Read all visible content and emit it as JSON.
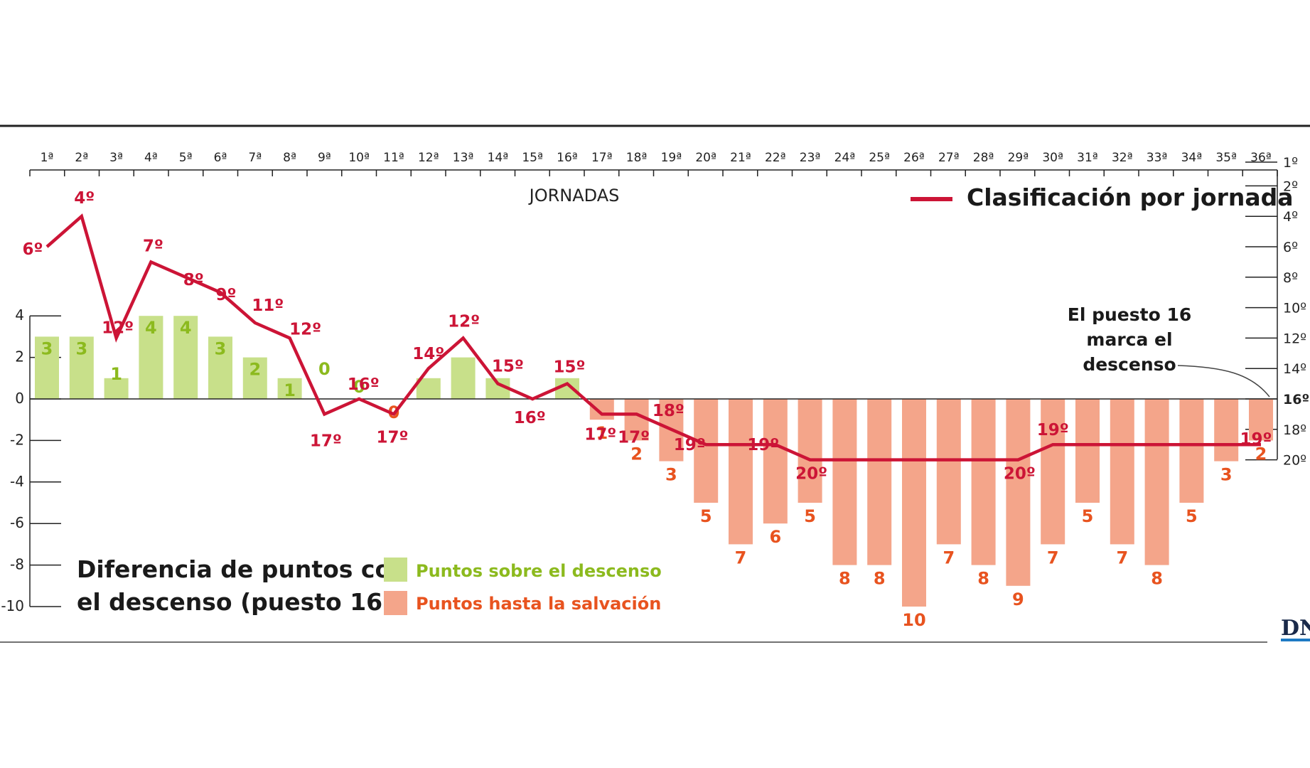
{
  "chart_data": {
    "type": "bar",
    "header_label": "JORNADAS",
    "title_lines": [
      "Diferencia de puntos con",
      "el descenso (puesto 16)"
    ],
    "jornadas": [
      "1ª",
      "2ª",
      "3ª",
      "4ª",
      "5ª",
      "6ª",
      "7ª",
      "8ª",
      "9ª",
      "10ª",
      "11ª",
      "12ª",
      "13ª",
      "14ª",
      "15ª",
      "16ª",
      "17ª",
      "18ª",
      "19ª",
      "20ª",
      "21ª",
      "22ª",
      "23ª",
      "24ª",
      "25ª",
      "26ª",
      "27ª",
      "28ª",
      "29ª",
      "30ª",
      "31ª",
      "32ª",
      "33ª",
      "34ª",
      "35ª",
      "36ª"
    ],
    "left_axis": {
      "ticks": [
        "4",
        "2",
        "0",
        "-2",
        "-4",
        "-6",
        "-8",
        "-10"
      ],
      "ylim": [
        -10,
        4
      ]
    },
    "right_axis": {
      "ticks": [
        "1º",
        "2º",
        "4º",
        "6º",
        "8º",
        "10º",
        "12º",
        "14º",
        "16º",
        "18º",
        "20º"
      ],
      "bold_tick": "16º",
      "ylim": [
        1,
        20
      ]
    },
    "series": [
      {
        "name": "Puntos sobre el descenso",
        "color": "#c8e08a",
        "label_color": "#8cba1e",
        "values": [
          3,
          3,
          1,
          4,
          4,
          3,
          2,
          1,
          0,
          0,
          null,
          1,
          2,
          1,
          null,
          1,
          null,
          null,
          null,
          null,
          null,
          null,
          null,
          null,
          null,
          null,
          null,
          null,
          null,
          null,
          null,
          null,
          null,
          null,
          null,
          null
        ],
        "labels": [
          "3",
          "3",
          "1",
          "4",
          "4",
          "3",
          "2",
          "1",
          "0",
          "0",
          "",
          "",
          "",
          "",
          "",
          "",
          "",
          "",
          "",
          "",
          "",
          "",
          "",
          "",
          "",
          "",
          "",
          "",
          "",
          "",
          "",
          "",
          "",
          "",
          "",
          ""
        ]
      },
      {
        "name": "Puntos hasta la salvación",
        "color": "#f4a58a",
        "label_color": "#e8531f",
        "values": [
          null,
          null,
          null,
          null,
          null,
          null,
          null,
          null,
          null,
          null,
          0,
          null,
          null,
          null,
          null,
          null,
          1,
          2,
          3,
          5,
          7,
          6,
          5,
          8,
          8,
          10,
          7,
          8,
          9,
          7,
          5,
          7,
          8,
          5,
          3,
          2
        ],
        "labels": [
          "",
          "",
          "",
          "",
          "",
          "",
          "",
          "",
          "",
          "",
          "0",
          "",
          "",
          "",
          "",
          "",
          "1",
          "2",
          "3",
          "5",
          "7",
          "6",
          "5",
          "8",
          "8",
          "10",
          "7",
          "8",
          "9",
          "7",
          "5",
          "7",
          "8",
          "5",
          "3",
          "2"
        ]
      },
      {
        "name": "Clasificación por jornada",
        "color": "#cc1436",
        "values": [
          6,
          4,
          12,
          7,
          8,
          9,
          11,
          12,
          17,
          16,
          17,
          14,
          12,
          15,
          16,
          15,
          17,
          17,
          18,
          19,
          19,
          19,
          20,
          20,
          20,
          20,
          20,
          20,
          20,
          19,
          19,
          19,
          19,
          19,
          19,
          19
        ],
        "labels": [
          "6º",
          "4º",
          "12º",
          "7º",
          "8º",
          "9º",
          "11º",
          "12º",
          "17º",
          "16º",
          "17º",
          "14º",
          "12º",
          "15º",
          "16º",
          "15º",
          "17º",
          "17º",
          "18º",
          "19º",
          "",
          "19º",
          "20º",
          "",
          "",
          "",
          "",
          "",
          "20º",
          "19º",
          "",
          "",
          "",
          "",
          "",
          "19º"
        ]
      }
    ],
    "annotation": [
      "El puesto 16",
      "marca el",
      "descenso"
    ],
    "logo": "DN"
  }
}
